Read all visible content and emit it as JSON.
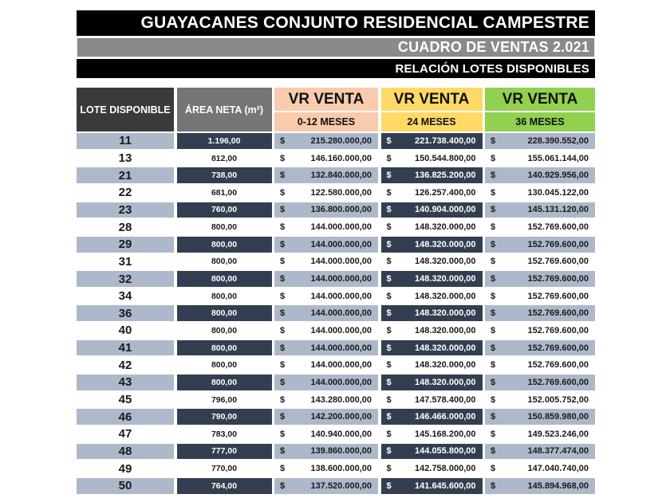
{
  "header": {
    "title": "GUAYACANES CONJUNTO RESIDENCIAL CAMPESTRE",
    "subtitle": "CUADRO DE VENTAS 2.021",
    "subtitle2": "RELACIÓN LOTES DISPONIBLES"
  },
  "table": {
    "columns": {
      "lote": "LOTE DISPONIBLE",
      "area": "ÁREA NETA (m²)",
      "vr_label": "VR VENTA",
      "period_0_12": "0-12 MESES",
      "period_24": "24 MESES",
      "period_36": "36 MESES",
      "currency": "$"
    },
    "rows": [
      {
        "lote": "11",
        "area": "1.196,00",
        "v12": "215.280.000,00",
        "v24": "221.738.400,00",
        "v36": "228.390.552,00"
      },
      {
        "lote": "13",
        "area": "812,00",
        "v12": "146.160.000,00",
        "v24": "150.544.800,00",
        "v36": "155.061.144,00"
      },
      {
        "lote": "21",
        "area": "738,00",
        "v12": "132.840.000,00",
        "v24": "136.825.200,00",
        "v36": "140.929.956,00"
      },
      {
        "lote": "22",
        "area": "681,00",
        "v12": "122.580.000,00",
        "v24": "126.257.400,00",
        "v36": "130.045.122,00"
      },
      {
        "lote": "23",
        "area": "760,00",
        "v12": "136.800.000,00",
        "v24": "140.904.000,00",
        "v36": "145.131.120,00"
      },
      {
        "lote": "28",
        "area": "800,00",
        "v12": "144.000.000,00",
        "v24": "148.320.000,00",
        "v36": "152.769.600,00"
      },
      {
        "lote": "29",
        "area": "800,00",
        "v12": "144.000.000,00",
        "v24": "148.320.000,00",
        "v36": "152.769.600,00"
      },
      {
        "lote": "31",
        "area": "800,00",
        "v12": "144.000.000,00",
        "v24": "148.320.000,00",
        "v36": "152.769.600,00"
      },
      {
        "lote": "32",
        "area": "800,00",
        "v12": "144.000.000,00",
        "v24": "148.320.000,00",
        "v36": "152.769.600,00"
      },
      {
        "lote": "34",
        "area": "800,00",
        "v12": "144.000.000,00",
        "v24": "148.320.000,00",
        "v36": "152.769.600,00"
      },
      {
        "lote": "36",
        "area": "800,00",
        "v12": "144.000.000,00",
        "v24": "148.320.000,00",
        "v36": "152.769.600,00"
      },
      {
        "lote": "40",
        "area": "800,00",
        "v12": "144.000.000,00",
        "v24": "148.320.000,00",
        "v36": "152.769.600,00"
      },
      {
        "lote": "41",
        "area": "800,00",
        "v12": "144.000.000,00",
        "v24": "148.320.000,00",
        "v36": "152.769.600,00"
      },
      {
        "lote": "42",
        "area": "800,00",
        "v12": "144.000.000,00",
        "v24": "148.320.000,00",
        "v36": "152.769.600,00"
      },
      {
        "lote": "43",
        "area": "800,00",
        "v12": "144.000.000,00",
        "v24": "148.320.000,00",
        "v36": "152.769.600,00"
      },
      {
        "lote": "45",
        "area": "796,00",
        "v12": "143.280.000,00",
        "v24": "147.578.400,00",
        "v36": "152.005.752,00"
      },
      {
        "lote": "46",
        "area": "790,00",
        "v12": "142.200.000,00",
        "v24": "146.466.000,00",
        "v36": "150.859.980,00"
      },
      {
        "lote": "47",
        "area": "783,00",
        "v12": "140.940.000,00",
        "v24": "145.168.200,00",
        "v36": "149.523.246,00"
      },
      {
        "lote": "48",
        "area": "777,00",
        "v12": "139.860.000,00",
        "v24": "144.055.800,00",
        "v36": "148.377.474,00"
      },
      {
        "lote": "49",
        "area": "770,00",
        "v12": "138.600.000,00",
        "v24": "142.758.000,00",
        "v36": "147.040.740,00"
      },
      {
        "lote": "50",
        "area": "764,00",
        "v12": "137.520.000,00",
        "v24": "141.645.600,00",
        "v36": "145.894.968,00"
      }
    ]
  },
  "colors": {
    "title_bar": "#000000",
    "subtitle_bar": "#8A8A8A",
    "lote_header_bg": "#3A3A3A",
    "area_header_bg": "#757575",
    "period_0_12_bg": "#F8CBAD",
    "period_24_bg": "#FFD966",
    "period_36_bg": "#92D050",
    "row_shaded_bg": "#ADB9CA",
    "row_dark_cell_bg": "#333F50"
  }
}
